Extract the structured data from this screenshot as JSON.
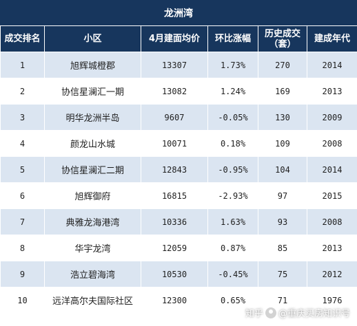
{
  "title": "龙洲湾",
  "columns": [
    "成交排名",
    "小区",
    "4月建面均价",
    "环比涨幅",
    "历史成交（套）",
    "建成年代"
  ],
  "rows": [
    {
      "rank": "1",
      "name": "旭辉城橙郡",
      "price": "13307",
      "change": "1.73%",
      "sales": "270",
      "year": "2014"
    },
    {
      "rank": "2",
      "name": "协信星澜汇一期",
      "price": "13082",
      "change": "1.24%",
      "sales": "169",
      "year": "2013"
    },
    {
      "rank": "3",
      "name": "明华龙洲半岛",
      "price": "9607",
      "change": "-0.05%",
      "sales": "130",
      "year": "2009"
    },
    {
      "rank": "4",
      "name": "颜龙山水城",
      "price": "10071",
      "change": "0.18%",
      "sales": "109",
      "year": "2008"
    },
    {
      "rank": "5",
      "name": "协信星澜汇二期",
      "price": "12843",
      "change": "-0.95%",
      "sales": "104",
      "year": "2014"
    },
    {
      "rank": "6",
      "name": "旭辉御府",
      "price": "16815",
      "change": "-2.93%",
      "sales": "97",
      "year": "2015"
    },
    {
      "rank": "7",
      "name": "典雅龙海港湾",
      "price": "10336",
      "change": "1.63%",
      "sales": "93",
      "year": "2008"
    },
    {
      "rank": "8",
      "name": "华宇龙湾",
      "price": "12059",
      "change": "0.87%",
      "sales": "85",
      "year": "2013"
    },
    {
      "rank": "9",
      "name": "浩立碧海湾",
      "price": "10530",
      "change": "-0.45%",
      "sales": "75",
      "year": "2012"
    },
    {
      "rank": "10",
      "name": "远洋高尔夫国际社区",
      "price": "12300",
      "change": "0.65%",
      "sales": "71",
      "year": "1976"
    }
  ],
  "watermark": {
    "prefix": "知乎",
    "account": "@重庆买房知识号",
    "icon": "user-avatar-icon"
  },
  "colors": {
    "header_bg": "#17365d",
    "row_alt_bg": "#dbe5f1",
    "row_bg": "#ffffff"
  }
}
